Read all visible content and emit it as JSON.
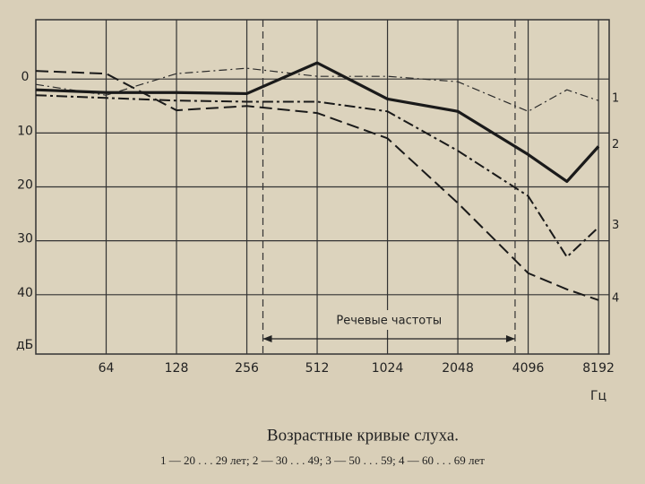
{
  "chart_data": {
    "type": "line",
    "title": "Возрастные кривые слуха.",
    "caption": "1 — 20 . . . 29 лет;  2 — 30 . . . 49;  3 — 50 . . . 59;  4 — 60 . . . 69 лет",
    "y_label": "дБ",
    "x_label": "Гц",
    "x_scale": "log",
    "x": [
      32,
      64,
      128,
      256,
      512,
      1024,
      2048,
      4096,
      6000,
      8192
    ],
    "xlim": [
      32,
      9100
    ],
    "xticks": [
      64,
      128,
      256,
      512,
      1024,
      2048,
      4096,
      8192
    ],
    "ylim": [
      51,
      -11
    ],
    "yticks": [
      0,
      10,
      20,
      30,
      40
    ],
    "grid": true,
    "annotation": {
      "text": "Речевые частоты",
      "range": [
        300,
        3600
      ]
    },
    "series": [
      {
        "name": "1",
        "color": "#2a2a2a",
        "line_style": "dash-dot-thin",
        "values": [
          1,
          3,
          -1,
          -2,
          -0.5,
          -0.5,
          0.5,
          6,
          2,
          4
        ]
      },
      {
        "name": "2",
        "color": "#1a1a1a",
        "line_style": "solid-thick",
        "values": [
          2,
          2.5,
          2.5,
          2.7,
          -3,
          3.7,
          6,
          14,
          19,
          12.5
        ]
      },
      {
        "name": "3",
        "color": "#1a1a1a",
        "line_style": "dash-dot",
        "values": [
          3,
          3.5,
          4,
          4.2,
          4.2,
          6,
          13.3,
          21.7,
          33,
          27.5
        ]
      },
      {
        "name": "4",
        "color": "#1a1a1a",
        "line_style": "dash",
        "values": [
          -1.5,
          -1,
          5.8,
          5,
          6.3,
          11,
          23,
          36,
          39,
          41
        ]
      }
    ]
  }
}
